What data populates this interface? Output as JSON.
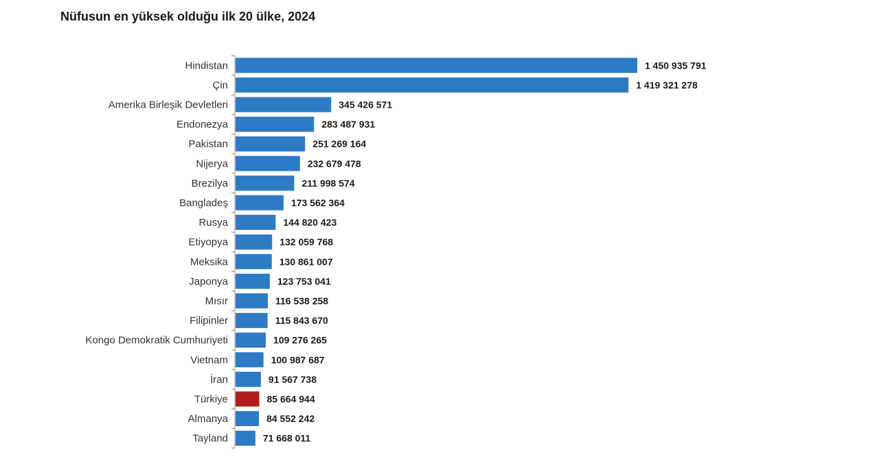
{
  "chart_data": {
    "type": "bar",
    "orientation": "horizontal",
    "title": "Nüfusun en yüksek olduğu ilk 20 ülke, 2024",
    "xlabel": "",
    "ylabel": "",
    "xlim": [
      0,
      1450935791
    ],
    "grid": false,
    "legend": "none",
    "bar_color": "#2e7bc5",
    "highlight_color": "#b01c1c",
    "highlight_category": "Türkiye",
    "categories": [
      "Hindistan",
      "Çin",
      "Amerika Birleşik Devletleri",
      "Endonezya",
      "Pakistan",
      "Nijerya",
      "Brezilya",
      "Bangladeş",
      "Rusya",
      "Etiyopya",
      "Meksika",
      "Japonya",
      "Mısır",
      "Filipinler",
      "Kongo Demokratik Cumhuriyeti",
      "Vietnam",
      "İran",
      "Türkiye",
      "Almanya",
      "Tayland"
    ],
    "values": [
      1450935791,
      1419321278,
      345426571,
      283487931,
      251269164,
      232679478,
      211998574,
      173562364,
      144820423,
      132059768,
      130861007,
      123753041,
      116538258,
      115843670,
      109276265,
      100987687,
      91567738,
      85664944,
      84552242,
      71668011
    ],
    "value_labels": [
      "1 450 935 791",
      "1 419 321 278",
      "345 426 571",
      "283 487 931",
      "251 269 164",
      "232 679 478",
      "211 998 574",
      "173 562 364",
      "144 820 423",
      "132 059 768",
      "130 861 007",
      "123 753 041",
      "116 538 258",
      "115 843 670",
      "109 276 265",
      "100 987 687",
      "91 567 738",
      "85 664 944",
      "84 552 242",
      "71 668 011"
    ]
  }
}
